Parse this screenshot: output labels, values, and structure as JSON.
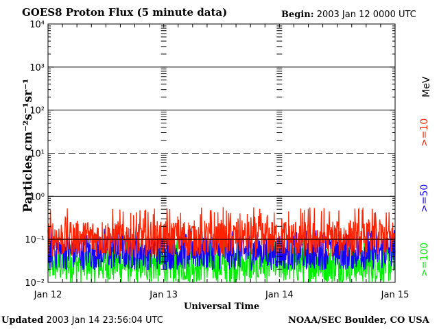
{
  "header": {
    "title": "GOES8 Proton Flux (5 minute data)",
    "begin_label": "Begin:",
    "begin_value": "2003 Jan 12 0000 UTC"
  },
  "footer": {
    "updated_label": "Updated",
    "updated_value": "2003 Jan 14 23:56:04 UTC",
    "credit": "NOAA/SEC Boulder, CO USA"
  },
  "right_labels": {
    "unit": "MeV",
    "ge10": ">=10",
    "ge50": ">=50",
    "ge100": ">=100"
  },
  "colors": {
    "ge10": "#ff2200",
    "ge50": "#1400ff",
    "ge100": "#00ee00"
  },
  "chart_data": {
    "type": "line",
    "xlabel": "Universal Time",
    "ylabel": "Particles cm⁻²s⁻¹sr⁻¹",
    "x_ticks": [
      "Jan 12",
      "Jan 13",
      "Jan 14",
      "Jan 15"
    ],
    "y_scale": "log",
    "ylim": [
      0.01,
      10000
    ],
    "y_ticks": [
      "10⁻²",
      "10⁻¹",
      "10⁰",
      "10¹",
      "10²",
      "10³",
      "10⁴"
    ],
    "reference_lines": [
      {
        "value": 10,
        "style": "dashed"
      },
      {
        "value": 0.1,
        "color": "#ff2200"
      }
    ],
    "series": [
      {
        "name": ">=10",
        "color": "#ff2200",
        "baseline": 0.12,
        "peak": 0.4
      },
      {
        "name": ">=50",
        "color": "#1400ff",
        "baseline": 0.06,
        "peak": 0.13
      },
      {
        "name": ">=100",
        "color": "#00ee00",
        "baseline": 0.03,
        "peak": 0.08
      }
    ]
  }
}
